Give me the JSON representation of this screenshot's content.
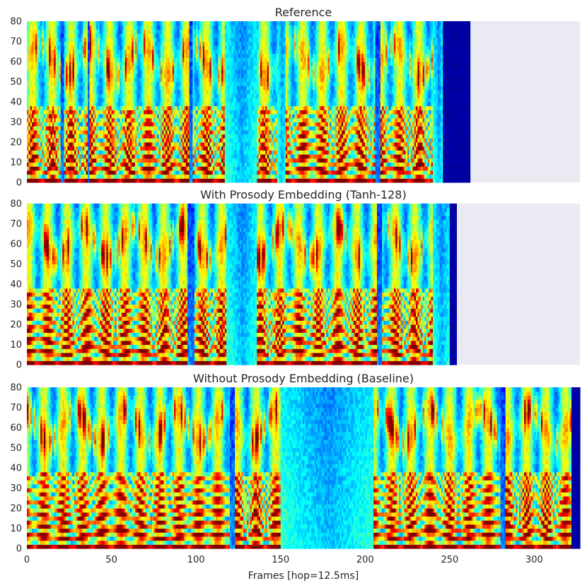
{
  "chart_data": [
    {
      "type": "heatmap",
      "title": "Reference",
      "x_frames": 262,
      "ylim": [
        0,
        80
      ],
      "yticks": [
        "0",
        "10",
        "20",
        "30",
        "40",
        "50",
        "60",
        "70",
        "80"
      ],
      "padding_color": "#eaeaf2",
      "colormap": "jet",
      "segments": [
        {
          "start": 0,
          "end": 20,
          "kind": "voiced"
        },
        {
          "start": 20,
          "end": 22,
          "kind": "pause"
        },
        {
          "start": 22,
          "end": 36,
          "kind": "voiced"
        },
        {
          "start": 36,
          "end": 37,
          "kind": "pause"
        },
        {
          "start": 37,
          "end": 63,
          "kind": "voiced"
        },
        {
          "start": 63,
          "end": 96,
          "kind": "voiced"
        },
        {
          "start": 96,
          "end": 98,
          "kind": "pause"
        },
        {
          "start": 98,
          "end": 117,
          "kind": "voiced"
        },
        {
          "start": 117,
          "end": 136,
          "kind": "silence"
        },
        {
          "start": 136,
          "end": 148,
          "kind": "voiced"
        },
        {
          "start": 148,
          "end": 153,
          "kind": "silence"
        },
        {
          "start": 153,
          "end": 206,
          "kind": "voiced"
        },
        {
          "start": 206,
          "end": 209,
          "kind": "pause"
        },
        {
          "start": 209,
          "end": 240,
          "kind": "voiced"
        },
        {
          "start": 240,
          "end": 246,
          "kind": "silence"
        },
        {
          "start": 246,
          "end": 262,
          "kind": "end"
        }
      ]
    },
    {
      "type": "heatmap",
      "title": "With Prosody Embedding (Tanh-128)",
      "x_frames": 254,
      "ylim": [
        0,
        80
      ],
      "yticks": [
        "0",
        "10",
        "20",
        "30",
        "40",
        "50",
        "60",
        "70",
        "80"
      ],
      "padding_color": "#eaeaf2",
      "colormap": "jet",
      "segments": [
        {
          "start": 0,
          "end": 63,
          "kind": "voiced"
        },
        {
          "start": 63,
          "end": 95,
          "kind": "voiced"
        },
        {
          "start": 95,
          "end": 99,
          "kind": "pause"
        },
        {
          "start": 99,
          "end": 118,
          "kind": "voiced"
        },
        {
          "start": 118,
          "end": 136,
          "kind": "silence"
        },
        {
          "start": 136,
          "end": 152,
          "kind": "voiced"
        },
        {
          "start": 152,
          "end": 207,
          "kind": "voiced"
        },
        {
          "start": 207,
          "end": 210,
          "kind": "pause"
        },
        {
          "start": 210,
          "end": 240,
          "kind": "voiced"
        },
        {
          "start": 240,
          "end": 250,
          "kind": "silence"
        },
        {
          "start": 250,
          "end": 254,
          "kind": "end"
        }
      ]
    },
    {
      "type": "heatmap",
      "title": "Without Prosody Embedding (Baseline)",
      "x_frames": 327,
      "ylim": [
        0,
        80
      ],
      "yticks": [
        "0",
        "10",
        "20",
        "30",
        "40",
        "50",
        "60",
        "70",
        "80"
      ],
      "xticks": [
        "0",
        "50",
        "100",
        "150",
        "200",
        "250",
        "300"
      ],
      "xlabel": "Frames [hop=12.5ms]",
      "colormap": "jet",
      "segments": [
        {
          "start": 0,
          "end": 120,
          "kind": "voiced"
        },
        {
          "start": 120,
          "end": 123,
          "kind": "pause"
        },
        {
          "start": 123,
          "end": 150,
          "kind": "voiced"
        },
        {
          "start": 150,
          "end": 205,
          "kind": "silence"
        },
        {
          "start": 205,
          "end": 280,
          "kind": "voiced"
        },
        {
          "start": 280,
          "end": 283,
          "kind": "pause"
        },
        {
          "start": 283,
          "end": 322,
          "kind": "voiced"
        },
        {
          "start": 322,
          "end": 327,
          "kind": "end"
        }
      ]
    }
  ]
}
